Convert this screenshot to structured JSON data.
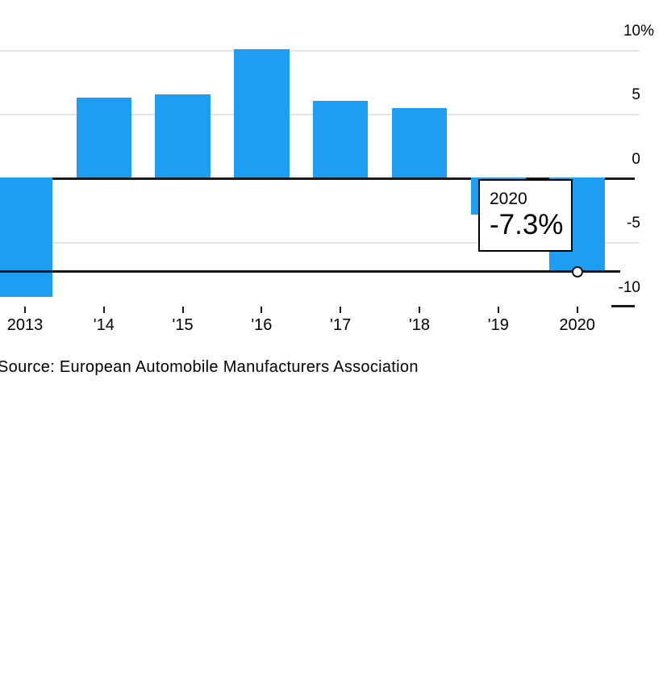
{
  "chart_data": {
    "type": "bar",
    "title": "",
    "categories": [
      "2013",
      "'14",
      "'15",
      "'16",
      "'17",
      "'18",
      "'19",
      "2020"
    ],
    "values": [
      -9.2,
      6.3,
      6.6,
      10.1,
      6.1,
      5.5,
      -2.8,
      -7.3
    ],
    "unit": "%",
    "xlabel": "",
    "ylabel": "",
    "ylim": [
      -10,
      10
    ],
    "y_ticks": [
      {
        "label": "10%",
        "value": 10
      },
      {
        "label": "5",
        "value": 5
      },
      {
        "label": "0",
        "value": 0
      },
      {
        "label": "-5",
        "value": -5
      },
      {
        "label": "-10",
        "value": -10
      }
    ],
    "grid": "horizontal-light",
    "legend": "none",
    "bar_color": "#1E9EF2",
    "highlight": {
      "category": "2020",
      "index": 7,
      "value": -7.3
    }
  },
  "tooltip": {
    "year": "2020",
    "value": "-7.3%"
  },
  "source": {
    "text": "Source: European Automobile Manufacturers Association"
  },
  "colors": {
    "bar": "#1E9EF2",
    "gridline": "#E3E3E3",
    "axis_dark": "#1A1A1A",
    "background": "#FFFFFF"
  }
}
